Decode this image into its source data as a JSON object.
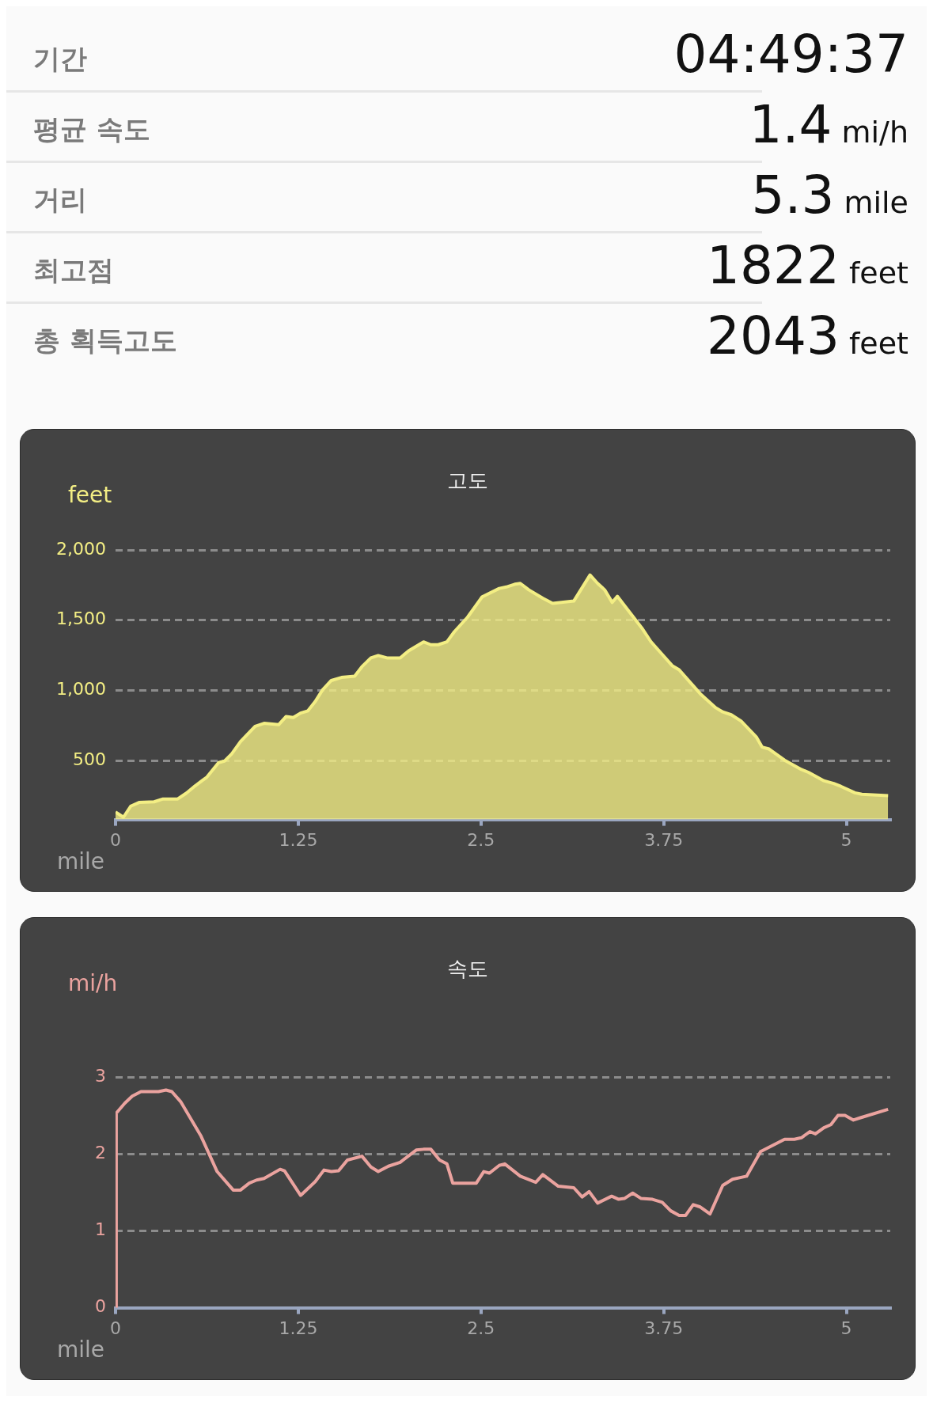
{
  "chart_data": [
    {
      "type": "other",
      "annotations": [
        "기간",
        "04:49:37",
        "평균 속도",
        "1.4 mi/h",
        "거리",
        "5.3 mile",
        "최고점",
        "1822 feet",
        "총 획득고도",
        "2043 feet"
      ]
    },
    {
      "type": "area",
      "title": "고도",
      "xlabel": "mile",
      "ylabel": "feet",
      "xlim": [
        0,
        5.3
      ],
      "xticks": [
        0,
        1.25,
        2.5,
        3.75,
        5
      ],
      "ylim": [
        80,
        2000
      ],
      "yticks": [
        {
          "value": 500,
          "label": "500"
        },
        {
          "value": 1000,
          "label": "1,000"
        },
        {
          "value": 1500,
          "label": "1,500"
        },
        {
          "value": 2000,
          "label": "2,000"
        }
      ],
      "grid": "y",
      "x": [
        0,
        0.054,
        0.104,
        0.164,
        0.264,
        0.325,
        0.425,
        0.485,
        0.545,
        0.625,
        0.705,
        0.745,
        0.795,
        0.855,
        0.955,
        1.016,
        1.116,
        1.166,
        1.216,
        1.266,
        1.316,
        1.366,
        1.416,
        1.476,
        1.546,
        1.636,
        1.686,
        1.747,
        1.797,
        1.857,
        1.947,
        2.007,
        2.107,
        2.157,
        2.207,
        2.267,
        2.318,
        2.408,
        2.508,
        2.625,
        2.673,
        2.731,
        2.769,
        2.827,
        2.923,
        2.99,
        3.135,
        3.246,
        3.298,
        3.346,
        3.398,
        3.433,
        3.51,
        3.606,
        3.663,
        3.74,
        3.808,
        3.856,
        3.923,
        4.0,
        4.106,
        4.154,
        4.212,
        4.279,
        4.385,
        4.423,
        4.471,
        4.577,
        4.692,
        4.74,
        4.846,
        4.913,
        4.962,
        5.058,
        5.106,
        5.285
      ],
      "series": [
        {
          "color": "#f3ee84",
          "values": [
            133,
            96,
            175,
            202,
            206,
            226,
            226,
            268,
            320,
            382,
            485,
            496,
            548,
            635,
            744,
            765,
            755,
            813,
            806,
            838,
            854,
            920,
            1003,
            1070,
            1092,
            1101,
            1169,
            1231,
            1248,
            1231,
            1231,
            1283,
            1345,
            1325,
            1325,
            1345,
            1418,
            1521,
            1666,
            1726,
            1736,
            1756,
            1762,
            1716,
            1656,
            1620,
            1636,
            1822,
            1762,
            1716,
            1626,
            1670,
            1566,
            1436,
            1346,
            1256,
            1176,
            1146,
            1066,
            976,
            876,
            846,
            826,
            782,
            666,
            596,
            582,
            502,
            436,
            416,
            356,
            336,
            316,
            270,
            260,
            250
          ]
        }
      ]
    },
    {
      "type": "line",
      "title": "속도",
      "xlabel": "mile",
      "ylabel": "mi/h",
      "xlim": [
        0,
        5.3
      ],
      "xticks": [
        0,
        1.25,
        2.5,
        3.75,
        5
      ],
      "ylim": [
        0,
        3
      ],
      "yticks": [
        0,
        1,
        2,
        3
      ],
      "grid": "y",
      "x": [
        0,
        0.005,
        0.064,
        0.114,
        0.174,
        0.294,
        0.345,
        0.385,
        0.445,
        0.585,
        0.695,
        0.805,
        0.855,
        0.915,
        0.965,
        1.016,
        1.126,
        1.156,
        1.266,
        1.366,
        1.426,
        1.476,
        1.526,
        1.586,
        1.686,
        1.747,
        1.797,
        1.867,
        1.947,
        2.057,
        2.107,
        2.157,
        2.217,
        2.267,
        2.307,
        2.468,
        2.519,
        2.558,
        2.625,
        2.663,
        2.769,
        2.875,
        2.923,
        3.029,
        3.135,
        3.192,
        3.24,
        3.298,
        3.394,
        3.442,
        3.481,
        3.538,
        3.596,
        3.673,
        3.74,
        3.798,
        3.856,
        3.9,
        3.952,
        4.0,
        4.067,
        4.154,
        4.221,
        4.317,
        4.413,
        4.577,
        4.644,
        4.692,
        4.75,
        4.788,
        4.846,
        4.894,
        4.942,
        4.99,
        5.048,
        5.096,
        5.285
      ],
      "series": [
        {
          "color": "#eba39f",
          "values": [
            0,
            2.53,
            2.66,
            2.75,
            2.81,
            2.81,
            2.83,
            2.81,
            2.68,
            2.23,
            1.77,
            1.53,
            1.53,
            1.62,
            1.66,
            1.68,
            1.8,
            1.78,
            1.46,
            1.64,
            1.79,
            1.77,
            1.78,
            1.92,
            1.97,
            1.83,
            1.77,
            1.84,
            1.89,
            2.05,
            2.06,
            2.06,
            1.92,
            1.87,
            1.62,
            1.62,
            1.77,
            1.75,
            1.85,
            1.87,
            1.71,
            1.63,
            1.73,
            1.58,
            1.56,
            1.44,
            1.51,
            1.36,
            1.45,
            1.41,
            1.42,
            1.49,
            1.42,
            1.41,
            1.37,
            1.26,
            1.2,
            1.2,
            1.34,
            1.31,
            1.22,
            1.59,
            1.67,
            1.71,
            2.03,
            2.19,
            2.19,
            2.21,
            2.29,
            2.26,
            2.34,
            2.38,
            2.5,
            2.5,
            2.44,
            2.47,
            2.58
          ]
        }
      ]
    }
  ]
}
